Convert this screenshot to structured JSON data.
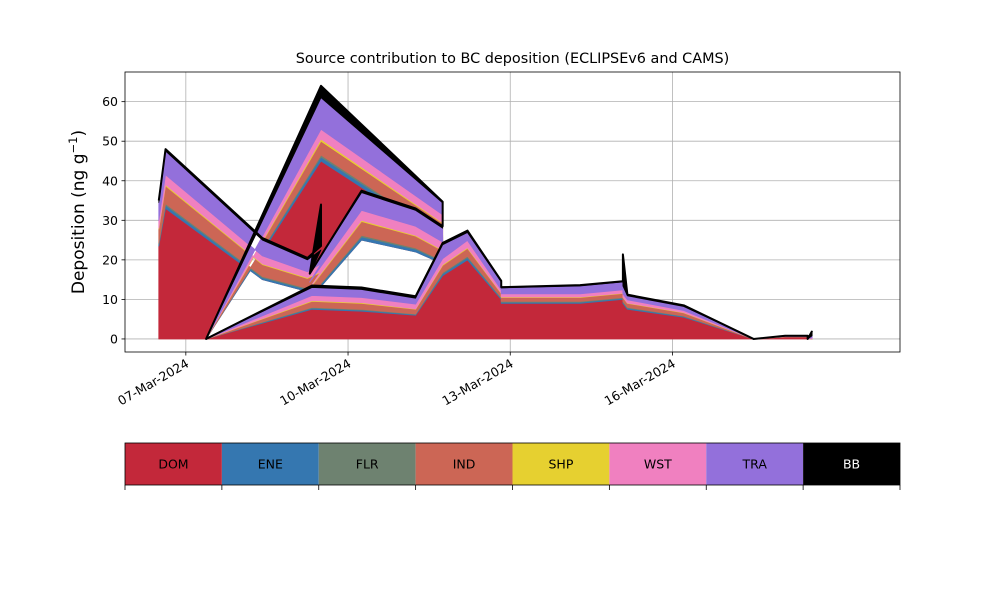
{
  "chart_data": {
    "type": "area",
    "title": "Source contribution to BC deposition (ECLIPSEv6 and CAMS)",
    "ylabel": "Deposition (ng g",
    "ylabel_sup": "−1",
    "ylabel_close": ")",
    "xlim": [
      "2024-03-05T21:00",
      "2024-03-20T05:00"
    ],
    "ylim": [
      -3.3,
      67.5
    ],
    "x_ticks": [
      "2024-03-07",
      "2024-03-10",
      "2024-03-13",
      "2024-03-16"
    ],
    "x_tick_labels": [
      "07-Mar-2024",
      "10-Mar-2024",
      "13-Mar-2024",
      "16-Mar-2024"
    ],
    "y_ticks": [
      0,
      10,
      20,
      30,
      40,
      50,
      60
    ],
    "grid": true,
    "stacked": true,
    "x": [
      "2024-03-06T12:00",
      "2024-03-06T15:00",
      "2024-03-08T10:00",
      "2024-03-09T06:00",
      "2024-03-09T12:00",
      "2024-03-09T12:00",
      "2024-03-09T07:00",
      "2024-03-10T06:00",
      "2024-03-11T06:00",
      "2024-03-11T18:00",
      "2024-03-11T18:00",
      "2024-03-09T12:00",
      "2024-03-07T09:00",
      "2024-03-09T08:00",
      "2024-03-10T06:00",
      "2024-03-11T06:00",
      "2024-03-11T18:00",
      "2024-03-12T05:00",
      "2024-03-12T20:00",
      "2024-03-12T20:00",
      "2024-03-14T07:00",
      "2024-03-15T02:00",
      "2024-03-15T02:00",
      "2024-03-15T04:00",
      "2024-03-16T05:00",
      "2024-03-17T12:00",
      "2024-03-18T02:00",
      "2024-03-18T12:00",
      "2024-03-18T12:00",
      "2024-03-18T14:00"
    ],
    "series": [
      {
        "name": "DOM",
        "color": "#c3283a",
        "values": [
          23.5,
          33.0,
          15.0,
          12.0,
          13.0,
          13.0,
          10.0,
          25.0,
          22.0,
          19.0,
          25.0,
          45.0,
          0.0,
          7.5,
          7.0,
          6.0,
          16.0,
          20.0,
          10.0,
          9.0,
          9.0,
          10.0,
          9.0,
          7.5,
          5.5,
          0.0,
          0.5,
          0.5,
          0.0,
          0.0
        ]
      },
      {
        "name": "ENE",
        "color": "#3577b0",
        "values": [
          0.5,
          0.8,
          0.5,
          0.5,
          0.5,
          0.5,
          0.5,
          0.8,
          0.7,
          0.5,
          0.8,
          1.0,
          0.0,
          0.3,
          0.3,
          0.2,
          0.5,
          0.6,
          0.3,
          0.3,
          0.3,
          0.3,
          0.3,
          0.3,
          0.2,
          0.0,
          0.0,
          0.0,
          0.0,
          0.0
        ]
      },
      {
        "name": "FLR",
        "color": "#6e8270",
        "values": [
          0.3,
          0.4,
          0.3,
          0.3,
          0.3,
          0.3,
          0.2,
          0.4,
          0.3,
          0.3,
          0.4,
          0.5,
          0.0,
          0.2,
          0.2,
          0.1,
          0.3,
          0.3,
          0.2,
          0.2,
          0.2,
          0.2,
          0.2,
          0.2,
          0.1,
          0.0,
          0.0,
          0.0,
          0.0,
          0.0
        ]
      },
      {
        "name": "IND",
        "color": "#cc6655",
        "values": [
          3.5,
          4.5,
          3.0,
          2.5,
          3.0,
          3.0,
          2.0,
          3.5,
          3.0,
          2.5,
          3.0,
          3.5,
          0.0,
          1.5,
          1.5,
          1.2,
          1.8,
          2.0,
          1.0,
          1.0,
          1.0,
          1.0,
          1.0,
          1.0,
          0.8,
          0.0,
          0.1,
          0.1,
          0.0,
          0.1
        ]
      },
      {
        "name": "SHP",
        "color": "#e6d030",
        "values": [
          0.2,
          0.3,
          0.2,
          0.2,
          0.2,
          0.2,
          0.2,
          0.3,
          0.2,
          0.2,
          0.2,
          0.5,
          0.0,
          0.2,
          0.2,
          0.1,
          0.2,
          0.2,
          0.1,
          0.1,
          0.1,
          0.1,
          0.1,
          0.1,
          0.1,
          0.0,
          0.0,
          0.0,
          0.0,
          0.0
        ]
      },
      {
        "name": "WST",
        "color": "#f080c0",
        "values": [
          2.0,
          2.5,
          2.0,
          1.5,
          2.0,
          2.0,
          1.5,
          2.5,
          2.3,
          2.0,
          2.0,
          2.5,
          0.0,
          1.3,
          1.3,
          1.2,
          1.5,
          1.8,
          0.8,
          0.8,
          0.8,
          0.8,
          0.8,
          0.8,
          0.5,
          0.0,
          0.1,
          0.1,
          0.0,
          0.2
        ]
      },
      {
        "name": "TRA",
        "color": "#9370db",
        "values": [
          4.5,
          6.0,
          4.0,
          3.0,
          3.5,
          3.5,
          2.0,
          4.5,
          4.0,
          3.5,
          3.0,
          8.0,
          0.0,
          2.0,
          2.0,
          1.5,
          3.5,
          2.0,
          2.0,
          1.5,
          2.0,
          2.0,
          2.0,
          1.0,
          1.0,
          0.0,
          0.0,
          0.0,
          0.0,
          0.5
        ]
      },
      {
        "name": "BB",
        "color": "#000000",
        "values": [
          0.5,
          0.5,
          0.5,
          0.5,
          1.0,
          11.5,
          0.1,
          0.5,
          0.5,
          0.5,
          0.3,
          3.0,
          0.0,
          0.5,
          0.5,
          0.5,
          0.5,
          0.5,
          0.3,
          0.2,
          0.2,
          0.2,
          8.0,
          0.3,
          0.3,
          0.0,
          0.1,
          0.1,
          0.0,
          1.2
        ]
      }
    ]
  }
}
